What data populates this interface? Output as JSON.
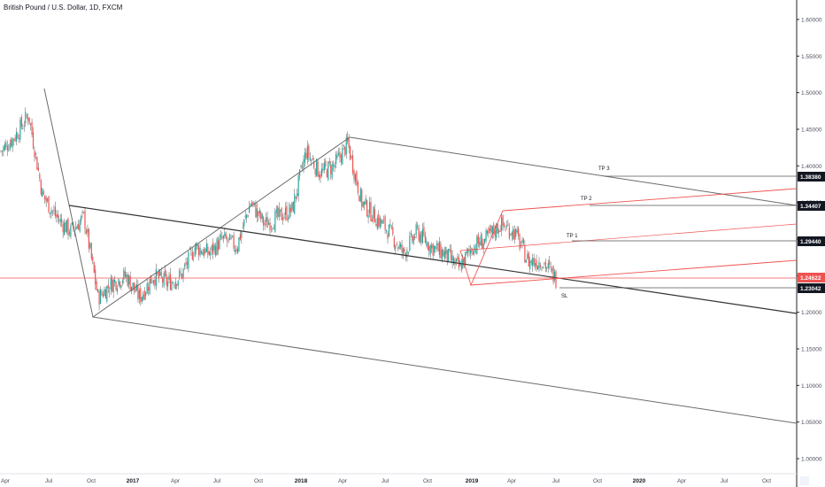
{
  "header": {
    "symbol_title": "British Pound / U.S. Dollar, 1D, FXCM"
  },
  "colors": {
    "up": "#26a69a",
    "down": "#ef5350",
    "wick": "#555555",
    "price_line": "#ef5350",
    "axis_line": "#222222",
    "channel_line": "#6b6b6b",
    "red_line": "#ef5350",
    "level_badge": "#131722",
    "price_badge": "#ef5350"
  },
  "annotations": {
    "tp1": "TP 1",
    "tp2": "TP 2",
    "tp3": "TP 3",
    "sl": "SL"
  },
  "price_badges": [
    {
      "value": "1.38380",
      "type": "level"
    },
    {
      "value": "1.34407",
      "type": "level"
    },
    {
      "value": "1.29440",
      "type": "level"
    },
    {
      "value": "1.24622",
      "type": "current"
    },
    {
      "value": "1.23042",
      "type": "level"
    }
  ],
  "chart_data": {
    "type": "candlestick",
    "title": "British Pound / U.S. Dollar, 1D, FXCM",
    "ylim": [
      0.98,
      1.63
    ],
    "y_ticks": [
      "1.00000",
      "1.05000",
      "1.10000",
      "1.15000",
      "1.20000",
      "1.25000",
      "1.30000",
      "1.35000",
      "1.40000",
      "1.45000",
      "1.50000",
      "1.55000",
      "1.60000"
    ],
    "x_ticks": [
      {
        "label": "Apr",
        "bold": false
      },
      {
        "label": "Jul",
        "bold": false
      },
      {
        "label": "Oct",
        "bold": false
      },
      {
        "label": "2017",
        "bold": true
      },
      {
        "label": "Apr",
        "bold": false
      },
      {
        "label": "Jul",
        "bold": false
      },
      {
        "label": "Oct",
        "bold": false
      },
      {
        "label": "2018",
        "bold": true
      },
      {
        "label": "Apr",
        "bold": false
      },
      {
        "label": "Jul",
        "bold": false
      },
      {
        "label": "Oct",
        "bold": false
      },
      {
        "label": "2019",
        "bold": true
      },
      {
        "label": "Apr",
        "bold": false
      },
      {
        "label": "Jul",
        "bold": false
      },
      {
        "label": "Oct",
        "bold": false
      },
      {
        "label": "2020",
        "bold": true
      },
      {
        "label": "Apr",
        "bold": false
      },
      {
        "label": "Jul",
        "bold": false
      },
      {
        "label": "Oct",
        "bold": false
      }
    ],
    "price_path": [
      {
        "t": "2016-04",
        "v": 1.42
      },
      {
        "t": "2016-05",
        "v": 1.44
      },
      {
        "t": "2016-06",
        "v": 1.47
      },
      {
        "t": "2016-06b",
        "v": 1.36
      },
      {
        "t": "2016-07",
        "v": 1.33
      },
      {
        "t": "2016-08",
        "v": 1.31
      },
      {
        "t": "2016-09",
        "v": 1.33
      },
      {
        "t": "2016-10",
        "v": 1.22
      },
      {
        "t": "2016-11",
        "v": 1.24
      },
      {
        "t": "2016-12",
        "v": 1.25
      },
      {
        "t": "2017-01",
        "v": 1.22
      },
      {
        "t": "2017-02",
        "v": 1.25
      },
      {
        "t": "2017-03",
        "v": 1.24
      },
      {
        "t": "2017-04",
        "v": 1.25
      },
      {
        "t": "2017-05",
        "v": 1.29
      },
      {
        "t": "2017-06",
        "v": 1.28
      },
      {
        "t": "2017-07",
        "v": 1.3
      },
      {
        "t": "2017-08",
        "v": 1.29
      },
      {
        "t": "2017-09",
        "v": 1.35
      },
      {
        "t": "2017-10",
        "v": 1.32
      },
      {
        "t": "2017-11",
        "v": 1.33
      },
      {
        "t": "2017-12",
        "v": 1.34
      },
      {
        "t": "2018-01",
        "v": 1.42
      },
      {
        "t": "2018-02",
        "v": 1.39
      },
      {
        "t": "2018-03",
        "v": 1.4
      },
      {
        "t": "2018-04",
        "v": 1.43
      },
      {
        "t": "2018-05",
        "v": 1.35
      },
      {
        "t": "2018-06",
        "v": 1.33
      },
      {
        "t": "2018-07",
        "v": 1.31
      },
      {
        "t": "2018-08",
        "v": 1.28
      },
      {
        "t": "2018-09",
        "v": 1.31
      },
      {
        "t": "2018-10",
        "v": 1.29
      },
      {
        "t": "2018-11",
        "v": 1.28
      },
      {
        "t": "2018-12",
        "v": 1.26
      },
      {
        "t": "2019-01",
        "v": 1.29
      },
      {
        "t": "2019-02",
        "v": 1.3
      },
      {
        "t": "2019-03",
        "v": 1.32
      },
      {
        "t": "2019-04",
        "v": 1.31
      },
      {
        "t": "2019-05",
        "v": 1.27
      },
      {
        "t": "2019-06",
        "v": 1.27
      },
      {
        "t": "2019-07",
        "v": 1.246
      }
    ]
  }
}
